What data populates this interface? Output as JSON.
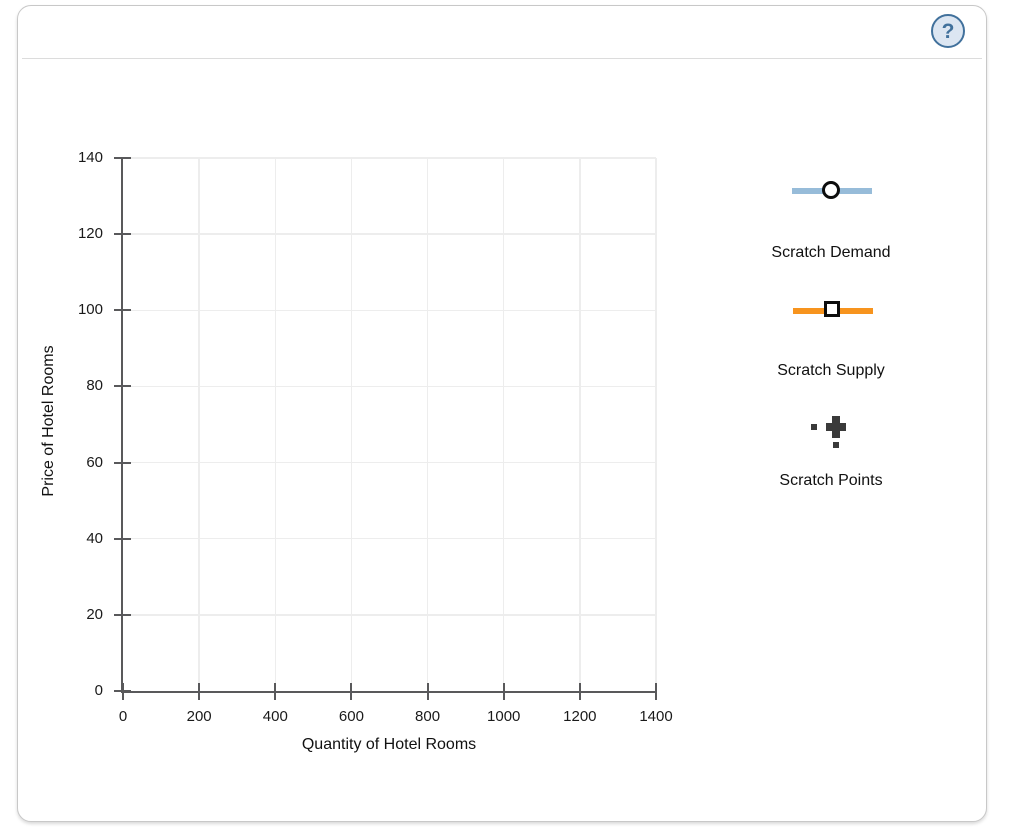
{
  "colors": {
    "card-border": "#c8c8c8",
    "axis": "#59595b",
    "grid": "#ededed",
    "help-ring": "#41719c",
    "help-bg": "#dce6f2",
    "demand-line": "#97bcd9",
    "supply-line": "#f7941e",
    "points-icon": "#3a3a3a"
  },
  "help": {
    "label": "?"
  },
  "tools": [
    {
      "id": "scratch-demand",
      "label": "Scratch Demand",
      "handle": "circle",
      "color": "#97bcd9"
    },
    {
      "id": "scratch-supply",
      "label": "Scratch Supply",
      "handle": "square",
      "color": "#f7941e"
    },
    {
      "id": "scratch-points",
      "label": "Scratch Points",
      "handle": "cross",
      "color": "#3a3a3a"
    }
  ],
  "chart_data": {
    "type": "scatter",
    "title": "",
    "xlabel": "Quantity of Hotel Rooms",
    "ylabel": "Price of Hotel Rooms",
    "xlim": [
      0,
      1400
    ],
    "ylim": [
      0,
      140
    ],
    "x_ticks": [
      0,
      200,
      400,
      600,
      800,
      1000,
      1200,
      1400
    ],
    "y_ticks": [
      0,
      20,
      40,
      60,
      80,
      100,
      120,
      140
    ],
    "grid": true,
    "legend_position": "none",
    "series": []
  }
}
